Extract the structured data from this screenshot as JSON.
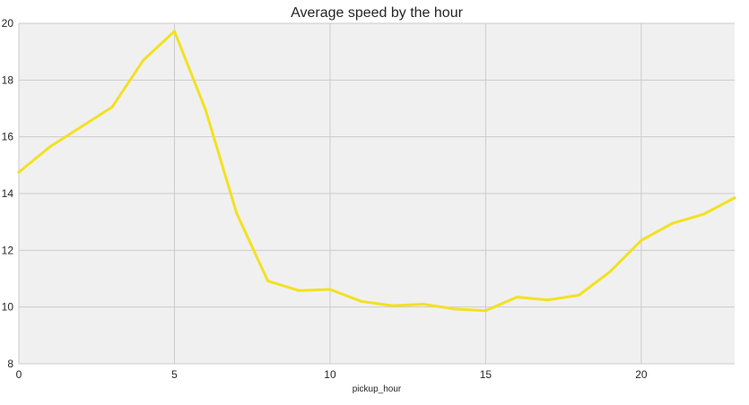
{
  "chart_data": {
    "type": "line",
    "title": "Average speed by the hour",
    "xlabel": "pickup_hour",
    "ylabel": "",
    "xlim": [
      0,
      23
    ],
    "ylim": [
      8,
      20
    ],
    "xticks": [
      0,
      5,
      10,
      15,
      20
    ],
    "yticks": [
      8,
      10,
      12,
      14,
      16,
      18,
      20
    ],
    "grid": true,
    "series": [
      {
        "color": "#f2e122",
        "x": [
          0,
          1,
          2,
          3,
          4,
          5,
          6,
          7,
          8,
          9,
          10,
          11,
          12,
          13,
          14,
          15,
          16,
          17,
          18,
          19,
          20,
          21,
          22,
          23
        ],
        "y": [
          14.75,
          15.65,
          16.35,
          17.05,
          18.7,
          19.72,
          16.95,
          13.3,
          10.92,
          10.58,
          10.62,
          10.2,
          10.05,
          10.1,
          9.93,
          9.87,
          10.35,
          10.25,
          10.42,
          11.25,
          12.35,
          12.95,
          13.27,
          13.85
        ]
      }
    ]
  }
}
